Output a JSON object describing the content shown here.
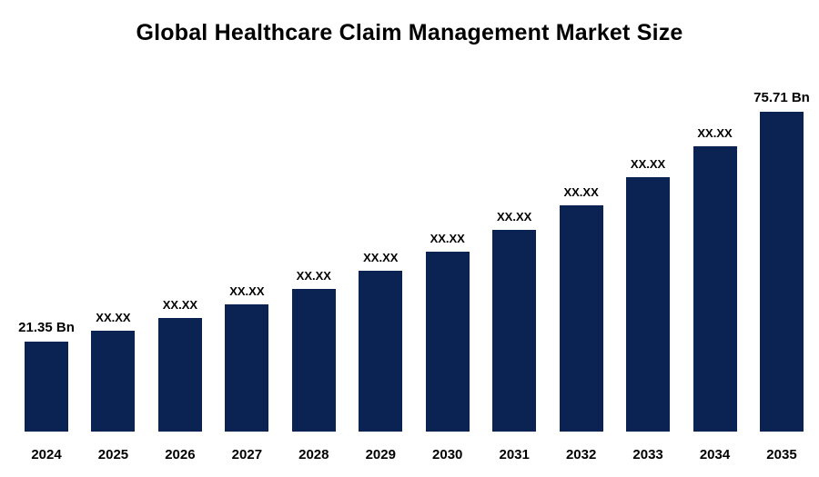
{
  "title": "Global Healthcare Claim Management Market Size",
  "chart_data": {
    "type": "bar",
    "title": "Global Healthcare Claim Management Market Size",
    "categories": [
      "2024",
      "2025",
      "2026",
      "2027",
      "2028",
      "2029",
      "2030",
      "2031",
      "2032",
      "2033",
      "2034",
      "2035"
    ],
    "values": [
      21.35,
      23.96,
      26.88,
      30.16,
      33.84,
      37.97,
      42.6,
      47.8,
      53.63,
      60.17,
      67.51,
      75.71
    ],
    "bar_labels": [
      "21.35 Bn",
      "XX.XX",
      "XX.XX",
      "XX.XX",
      "XX.XX",
      "XX.XX",
      "XX.XX",
      "XX.XX",
      "XX.XX",
      "XX.XX",
      "XX.XX",
      "75.71 Bn"
    ],
    "xlabel": "",
    "ylabel": "",
    "ylim": [
      0,
      80
    ],
    "grid": false,
    "legend": "none",
    "bar_color": "#0b2353",
    "label_color": "#000000",
    "background_color": "#ffffff"
  }
}
